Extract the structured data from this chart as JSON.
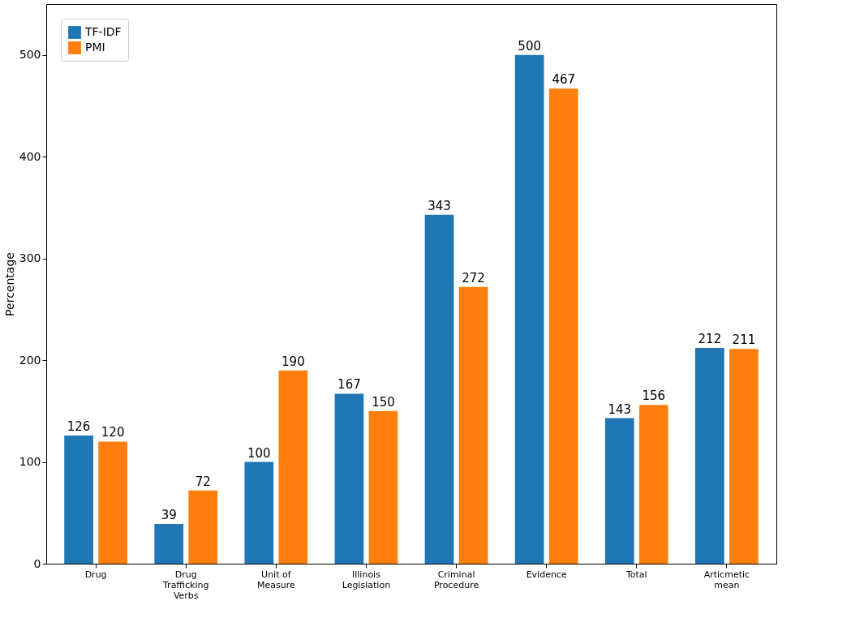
{
  "chart_data": {
    "type": "bar",
    "ylabel": "Percentage",
    "categories": [
      "Drug",
      "Drug Trafficking Verbs",
      "Unit of Measure",
      "Illinois Legislation",
      "Criminal Procedure",
      "Evidence",
      "Total",
      "Articmetic mean"
    ],
    "series": [
      {
        "name": "TF-IDF",
        "color": "#1f77b4",
        "values": [
          126,
          39,
          100,
          167,
          343,
          500,
          143,
          212
        ]
      },
      {
        "name": "PMI",
        "color": "#ff7f0e",
        "values": [
          120,
          72,
          190,
          150,
          272,
          467,
          156,
          211
        ]
      }
    ],
    "ylim": [
      0,
      550
    ],
    "yticks": [
      0,
      100,
      200,
      300,
      400,
      500
    ],
    "grid": false,
    "legend": "top left",
    "data_labels": true
  }
}
